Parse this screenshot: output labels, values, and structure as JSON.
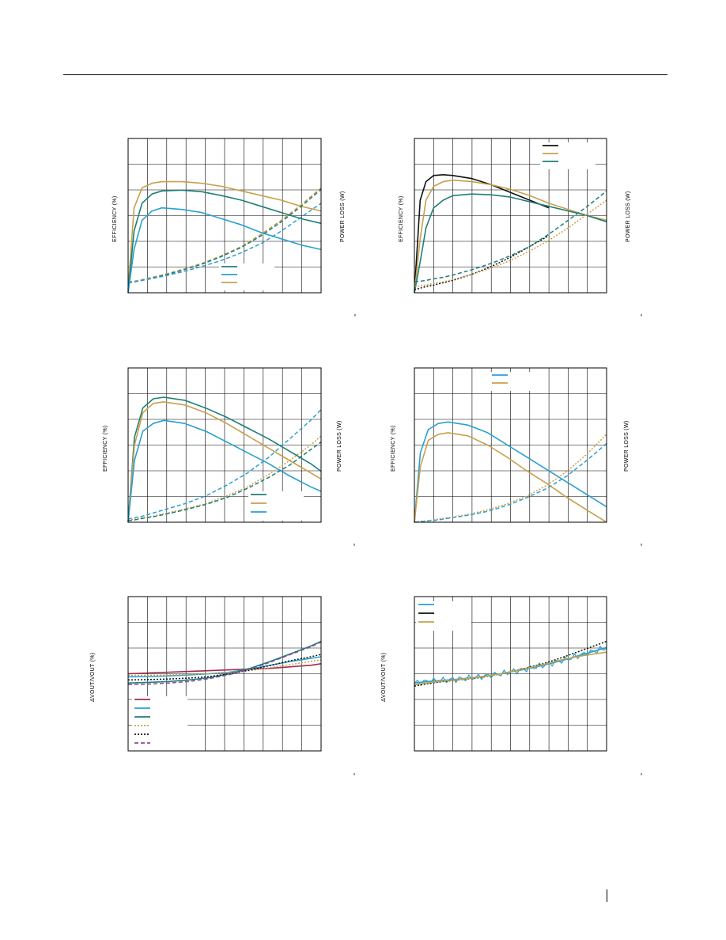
{
  "page": {
    "code_mark": "≈",
    "colors": {
      "black": "#111111",
      "gold": "#c8a04a",
      "teal": "#1e7e78",
      "cyan": "#2aa0d0",
      "crimson": "#a32a4a",
      "purple": "#8a4aa0"
    }
  },
  "chart_data": [
    {
      "type": "line",
      "ylabel_left": "EFFICIENCY (%)",
      "ylabel_right": "POWER LOSS (W)",
      "x": [
        0.03,
        0.06,
        0.1,
        0.15,
        0.2,
        0.3,
        0.4,
        0.5,
        0.6,
        0.7,
        0.8,
        0.9,
        1.0
      ],
      "ylim": [
        0,
        1
      ],
      "grid": true,
      "series": [
        {
          "color": "gold",
          "style": "solid",
          "values": [
            0.02,
            0.55,
            0.68,
            0.71,
            0.72,
            0.72,
            0.71,
            0.69,
            0.66,
            0.63,
            0.6,
            0.56,
            0.53
          ]
        },
        {
          "color": "teal",
          "style": "solid",
          "values": [
            0.0,
            0.4,
            0.58,
            0.64,
            0.66,
            0.665,
            0.655,
            0.63,
            0.6,
            0.56,
            0.52,
            0.48,
            0.45
          ]
        },
        {
          "color": "cyan",
          "style": "solid",
          "values": [
            0.0,
            0.28,
            0.47,
            0.53,
            0.55,
            0.54,
            0.52,
            0.48,
            0.44,
            0.39,
            0.35,
            0.31,
            0.28
          ]
        },
        {
          "color": "gold",
          "style": "dashed",
          "values": [
            0.07,
            0.075,
            0.085,
            0.1,
            0.115,
            0.15,
            0.19,
            0.24,
            0.3,
            0.38,
            0.47,
            0.57,
            0.68
          ]
        },
        {
          "color": "teal",
          "style": "dashed",
          "values": [
            0.065,
            0.07,
            0.08,
            0.095,
            0.11,
            0.145,
            0.185,
            0.235,
            0.295,
            0.37,
            0.46,
            0.56,
            0.67
          ]
        },
        {
          "color": "cyan",
          "style": "dashed",
          "values": [
            0.07,
            0.072,
            0.08,
            0.092,
            0.105,
            0.135,
            0.17,
            0.21,
            0.26,
            0.32,
            0.4,
            0.49,
            0.58
          ]
        }
      ],
      "legend_swatches": [
        "teal",
        "cyan",
        "gold"
      ],
      "legend_position": "bottom-center"
    },
    {
      "type": "line",
      "ylabel_left": "EFFICIENCY (%)",
      "ylabel_right": "POWER LOSS (W)",
      "x": [
        0.0,
        0.03,
        0.06,
        0.1,
        0.15,
        0.2,
        0.3,
        0.4,
        0.5,
        0.6,
        0.7,
        0.8,
        0.9,
        1.0
      ],
      "ylim": [
        0,
        1
      ],
      "grid": true,
      "series": [
        {
          "color": "black",
          "style": "solid",
          "values": [
            0.0,
            0.6,
            0.72,
            0.76,
            0.765,
            0.76,
            0.74,
            0.7,
            0.65,
            0.6,
            0.55,
            null,
            null,
            null
          ]
        },
        {
          "color": "gold",
          "style": "solid",
          "values": [
            0.0,
            0.35,
            0.6,
            0.69,
            0.72,
            0.73,
            0.72,
            0.7,
            0.67,
            0.63,
            0.58,
            0.54,
            0.5,
            0.47
          ]
        },
        {
          "color": "teal",
          "style": "solid",
          "values": [
            0.0,
            0.2,
            0.42,
            0.55,
            0.6,
            0.63,
            0.64,
            0.635,
            0.62,
            0.59,
            0.56,
            0.53,
            0.5,
            0.46
          ]
        },
        {
          "color": "black",
          "style": "dotted",
          "values": [
            0.02,
            0.03,
            0.04,
            0.05,
            0.065,
            0.08,
            0.12,
            0.17,
            0.23,
            0.3,
            0.37,
            null,
            null,
            null
          ]
        },
        {
          "color": "gold",
          "style": "dotted",
          "values": [
            0.04,
            0.045,
            0.05,
            0.06,
            0.07,
            0.085,
            0.12,
            0.16,
            0.21,
            0.27,
            0.34,
            0.42,
            0.51,
            0.6
          ]
        },
        {
          "color": "teal",
          "style": "dashed",
          "values": [
            0.07,
            0.075,
            0.08,
            0.09,
            0.1,
            0.115,
            0.15,
            0.19,
            0.24,
            0.3,
            0.38,
            0.47,
            0.56,
            0.66
          ]
        }
      ],
      "legend_swatches": [
        "black",
        "gold",
        "teal"
      ],
      "legend_position": "top-right"
    },
    {
      "type": "line",
      "ylabel_left": "EFFICIENCY (%)",
      "ylabel_right": "POWER LOSS (W)",
      "x": [
        0.03,
        0.06,
        0.1,
        0.15,
        0.2,
        0.3,
        0.4,
        0.5,
        0.6,
        0.7,
        0.8,
        0.9,
        0.95
      ],
      "ylim": [
        0,
        1
      ],
      "grid": true,
      "series": [
        {
          "color": "teal",
          "style": "solid",
          "values": [
            0.0,
            0.55,
            0.74,
            0.8,
            0.81,
            0.79,
            0.74,
            0.68,
            0.61,
            0.54,
            0.46,
            0.38,
            0.33
          ]
        },
        {
          "color": "gold",
          "style": "solid",
          "values": [
            0.0,
            0.5,
            0.71,
            0.77,
            0.78,
            0.76,
            0.71,
            0.64,
            0.56,
            0.48,
            0.4,
            0.32,
            0.28
          ]
        },
        {
          "color": "cyan",
          "style": "solid",
          "values": [
            0.0,
            0.4,
            0.59,
            0.64,
            0.66,
            0.64,
            0.59,
            0.52,
            0.45,
            0.38,
            0.3,
            0.23,
            0.2
          ]
        },
        {
          "color": "cyan",
          "style": "dashed",
          "values": [
            0.02,
            0.03,
            0.04,
            0.06,
            0.08,
            0.12,
            0.17,
            0.24,
            0.32,
            0.42,
            0.54,
            0.66,
            0.73
          ]
        },
        {
          "color": "gold",
          "style": "dotted",
          "values": [
            0.015,
            0.02,
            0.03,
            0.04,
            0.055,
            0.085,
            0.12,
            0.17,
            0.23,
            0.31,
            0.4,
            0.5,
            0.56
          ]
        },
        {
          "color": "teal",
          "style": "dashed",
          "values": [
            0.01,
            0.015,
            0.025,
            0.035,
            0.05,
            0.08,
            0.115,
            0.16,
            0.22,
            0.29,
            0.37,
            0.47,
            0.52
          ]
        }
      ],
      "legend_swatches": [
        "teal",
        "gold",
        "cyan"
      ],
      "legend_position": "bottom-right"
    },
    {
      "type": "line",
      "ylabel_left": "EFFICIENCY (%)",
      "ylabel_right": "POWER LOSS (W)",
      "x": [
        0.03,
        0.06,
        0.1,
        0.15,
        0.2,
        0.3,
        0.4,
        0.5,
        0.6,
        0.7,
        0.8,
        0.9,
        1.0
      ],
      "ylim": [
        0,
        1
      ],
      "grid": true,
      "series": [
        {
          "color": "cyan",
          "style": "solid",
          "values": [
            0.0,
            0.45,
            0.6,
            0.64,
            0.65,
            0.63,
            0.58,
            0.5,
            0.42,
            0.34,
            0.26,
            0.18,
            0.1
          ]
        },
        {
          "color": "gold",
          "style": "solid",
          "values": [
            0.0,
            0.36,
            0.53,
            0.57,
            0.58,
            0.56,
            0.5,
            0.42,
            0.33,
            0.25,
            0.16,
            0.08,
            0.0
          ]
        },
        {
          "color": "gold",
          "style": "dotted",
          "values": [
            0.0,
            0.005,
            0.01,
            0.02,
            0.03,
            0.05,
            0.08,
            0.12,
            0.17,
            0.24,
            0.33,
            0.44,
            0.57
          ]
        },
        {
          "color": "cyan",
          "style": "dashed",
          "values": [
            0.0,
            0.003,
            0.008,
            0.015,
            0.025,
            0.045,
            0.07,
            0.11,
            0.16,
            0.22,
            0.3,
            0.4,
            0.51
          ]
        }
      ],
      "legend_swatches": [
        "cyan",
        "gold"
      ],
      "legend_position": "top-center"
    },
    {
      "type": "line",
      "ylabel_left": "ΔVOUT/VOUT (%)",
      "x": [
        0.0,
        0.1,
        0.2,
        0.3,
        0.4,
        0.5,
        0.6,
        0.7,
        0.8,
        0.9,
        0.95
      ],
      "ylim": [
        0,
        1
      ],
      "grid": true,
      "series": [
        {
          "color": "crimson",
          "style": "solid",
          "values": [
            0.5,
            0.505,
            0.51,
            0.515,
            0.52,
            0.525,
            0.53,
            0.535,
            0.545,
            0.555,
            0.565
          ]
        },
        {
          "color": "cyan",
          "style": "solid",
          "values": [
            0.48,
            0.482,
            0.486,
            0.492,
            0.5,
            0.51,
            0.53,
            0.555,
            0.58,
            0.6,
            0.61
          ]
        },
        {
          "color": "teal",
          "style": "solid",
          "values": [
            0.44,
            0.444,
            0.45,
            0.46,
            0.475,
            0.5,
            0.535,
            0.58,
            0.63,
            0.68,
            0.71
          ]
        },
        {
          "color": "gold",
          "style": "dotted",
          "values": [
            0.49,
            0.49,
            0.492,
            0.495,
            0.5,
            0.508,
            0.52,
            0.54,
            0.56,
            0.58,
            0.59
          ]
        },
        {
          "color": "black",
          "style": "dotted",
          "values": [
            0.46,
            0.462,
            0.466,
            0.472,
            0.482,
            0.5,
            0.524,
            0.554,
            0.585,
            0.61,
            0.625
          ]
        },
        {
          "color": "purple",
          "style": "dashed",
          "values": [
            0.43,
            0.433,
            0.44,
            0.45,
            0.468,
            0.495,
            0.53,
            0.575,
            0.625,
            0.675,
            0.705
          ]
        }
      ],
      "legend_swatches": [
        "crimson",
        "cyan",
        "teal",
        "gold",
        "black",
        "purple"
      ],
      "legend_position": "bottom-left"
    },
    {
      "type": "line",
      "ylabel_left": "ΔVOUT/VOUT (%)",
      "x": [
        0.09,
        0.15,
        0.2,
        0.3,
        0.4,
        0.5,
        0.6,
        0.7,
        0.8,
        0.9,
        1.0
      ],
      "ylim": [
        0,
        1
      ],
      "grid": true,
      "series": [
        {
          "color": "cyan",
          "style": "solid",
          "noisy": true,
          "values": [
            0.44,
            0.45,
            0.455,
            0.465,
            0.48,
            0.5,
            0.525,
            0.555,
            0.59,
            0.63,
            0.67
          ]
        },
        {
          "color": "black",
          "style": "dotted",
          "values": [
            0.42,
            0.435,
            0.445,
            0.46,
            0.475,
            0.5,
            0.53,
            0.565,
            0.61,
            0.66,
            0.71
          ]
        },
        {
          "color": "gold",
          "style": "solid",
          "values": [
            0.43,
            0.44,
            0.45,
            0.462,
            0.478,
            0.5,
            0.528,
            0.56,
            0.595,
            0.62,
            0.64
          ]
        }
      ],
      "legend_swatches": [
        "cyan",
        "black",
        "gold"
      ],
      "legend_position": "top-left"
    }
  ]
}
